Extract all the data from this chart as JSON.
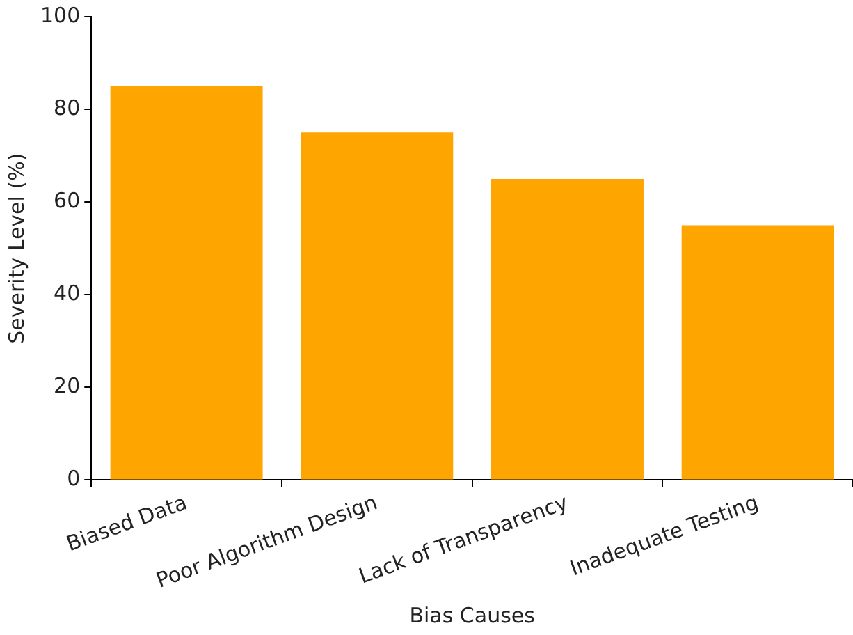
{
  "chart_data": {
    "type": "bar",
    "xlabel": "Bias Causes",
    "ylabel": "Severity Level (%)",
    "categories": [
      "Biased Data",
      "Poor Algorithm Design",
      "Lack of Transparency",
      "Inadequate Testing"
    ],
    "values": [
      85,
      75,
      65,
      55
    ],
    "color": "#ffa500",
    "ylim": [
      0,
      100
    ],
    "yticks": [
      0,
      20,
      40,
      60,
      80,
      100
    ],
    "grid": false,
    "legend": false
  }
}
